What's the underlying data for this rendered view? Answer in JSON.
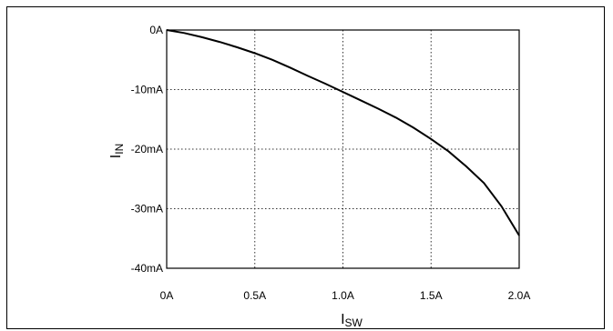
{
  "chart_data": {
    "type": "line",
    "title": "",
    "xlabel": {
      "main": "I",
      "sub": "SW"
    },
    "ylabel": {
      "main": "I",
      "sub": "IN"
    },
    "xlim": [
      0,
      2.0
    ],
    "ylim": [
      -40,
      0
    ],
    "x_ticks": [
      {
        "value": 0,
        "label": "0A"
      },
      {
        "value": 0.5,
        "label": "0.5A"
      },
      {
        "value": 1.0,
        "label": "1.0A"
      },
      {
        "value": 1.5,
        "label": "1.5A"
      },
      {
        "value": 2.0,
        "label": "2.0A"
      }
    ],
    "y_ticks": [
      {
        "value": 0,
        "label": "0A"
      },
      {
        "value": -10,
        "label": "-10mA"
      },
      {
        "value": -20,
        "label": "-20mA"
      },
      {
        "value": -30,
        "label": "-30mA"
      },
      {
        "value": -40,
        "label": "-40mA"
      }
    ],
    "grid": true,
    "series": [
      {
        "x": [
          0,
          0.1,
          0.2,
          0.3,
          0.4,
          0.5,
          0.6,
          0.7,
          0.8,
          0.9,
          1.0,
          1.1,
          1.2,
          1.3,
          1.4,
          1.5,
          1.6,
          1.7,
          1.8,
          1.9,
          2.0
        ],
        "y": [
          0,
          -0.5,
          -1.2,
          -2.0,
          -2.9,
          -3.9,
          -5.0,
          -6.3,
          -7.7,
          -9.0,
          -10.4,
          -11.8,
          -13.2,
          -14.7,
          -16.4,
          -18.3,
          -20.4,
          -22.9,
          -25.7,
          -29.6,
          -34.5
        ]
      }
    ]
  }
}
